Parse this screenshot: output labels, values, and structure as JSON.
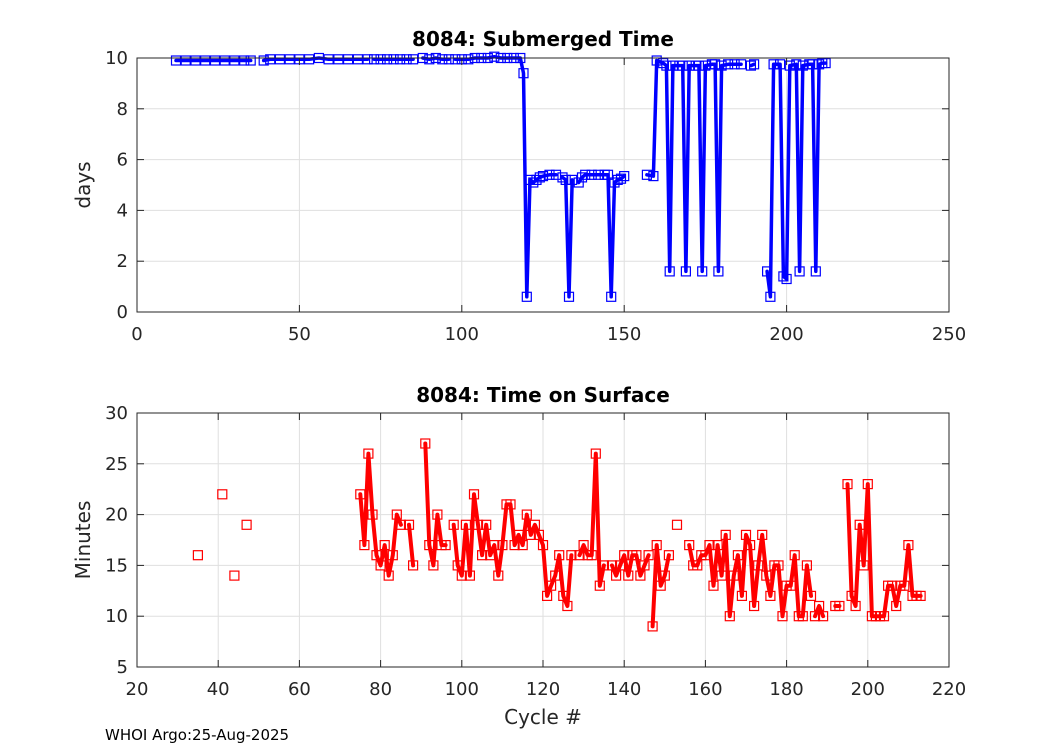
{
  "chart_data": [
    {
      "type": "line",
      "title": "8084: Submerged Time",
      "xlabel": "",
      "ylabel": "days",
      "xlim": [
        0,
        250
      ],
      "ylim": [
        0,
        10
      ],
      "xticks": [
        0,
        50,
        100,
        150,
        200,
        250
      ],
      "yticks": [
        0,
        2,
        4,
        6,
        8,
        10
      ],
      "grid": true,
      "series": [
        {
          "name": "Submerged Time",
          "color": "#0000ff",
          "marker": "square",
          "segments": [
            [
              [
                12,
                9.9
              ],
              [
                15,
                9.9
              ],
              [
                18,
                9.9
              ],
              [
                21,
                9.9
              ],
              [
                24,
                9.9
              ],
              [
                27,
                9.9
              ],
              [
                30,
                9.9
              ],
              [
                33,
                9.9
              ],
              [
                35,
                9.9
              ]
            ],
            [
              [
                39,
                9.9
              ],
              [
                41,
                9.95
              ],
              [
                44,
                9.95
              ],
              [
                47,
                9.95
              ],
              [
                50,
                9.95
              ],
              [
                53,
                9.95
              ],
              [
                56,
                10.0
              ],
              [
                59,
                9.95
              ],
              [
                62,
                9.95
              ],
              [
                65,
                9.95
              ],
              [
                68,
                9.95
              ],
              [
                71,
                9.95
              ]
            ],
            [
              [
                73,
                9.95
              ],
              [
                75,
                9.95
              ],
              [
                77,
                9.95
              ],
              [
                79,
                9.95
              ],
              [
                81,
                9.95
              ],
              [
                83,
                9.95
              ],
              [
                85,
                9.95
              ]
            ],
            [
              [
                88,
                10.0
              ],
              [
                90,
                9.95
              ],
              [
                92,
                10.0
              ],
              [
                94,
                9.95
              ],
              [
                96,
                9.95
              ]
            ],
            [
              [
                98,
                9.95
              ],
              [
                100,
                9.95
              ],
              [
                102,
                9.95
              ],
              [
                104,
                10.0
              ],
              [
                106,
                10.0
              ],
              [
                108,
                10.0
              ],
              [
                110,
                10.05
              ],
              [
                112,
                10.0
              ],
              [
                114,
                10.0
              ],
              [
                116,
                10.0
              ],
              [
                118,
                10.0
              ],
              [
                119,
                9.4
              ],
              [
                120,
                0.6
              ],
              [
                121,
                5.2
              ],
              [
                122,
                5.1
              ],
              [
                123,
                5.2
              ],
              [
                124,
                5.3
              ],
              [
                125,
                5.35
              ],
              [
                127,
                5.4
              ],
              [
                129,
                5.4
              ]
            ],
            [
              [
                131,
                5.3
              ],
              [
                132,
                5.2
              ],
              [
                133,
                0.6
              ],
              [
                134,
                5.2
              ]
            ],
            [
              [
                136,
                5.1
              ],
              [
                137,
                5.3
              ],
              [
                138,
                5.4
              ],
              [
                140,
                5.4
              ],
              [
                142,
                5.4
              ],
              [
                144,
                5.4
              ],
              [
                145,
                5.4
              ],
              [
                146,
                0.6
              ],
              [
                147,
                5.1
              ],
              [
                148,
                5.2
              ],
              [
                149,
                5.25
              ],
              [
                150,
                5.35
              ]
            ],
            [
              [
                157,
                5.4
              ],
              [
                159,
                5.35
              ],
              [
                160,
                9.9
              ],
              [
                162,
                9.8
              ],
              [
                163,
                9.7
              ],
              [
                164,
                1.6
              ],
              [
                165,
                9.7
              ],
              [
                167,
                9.7
              ],
              [
                168,
                9.7
              ],
              [
                169,
                1.6
              ],
              [
                170,
                9.7
              ],
              [
                172,
                9.7
              ],
              [
                173,
                9.7
              ],
              [
                174,
                1.6
              ],
              [
                175,
                9.7
              ],
              [
                177,
                9.75
              ],
              [
                178,
                9.75
              ],
              [
                179,
                1.6
              ],
              [
                180,
                9.7
              ],
              [
                182,
                9.75
              ],
              [
                184,
                9.75
              ],
              [
                186,
                9.75
              ]
            ],
            [
              [
                189,
                9.7
              ],
              [
                190,
                9.75
              ]
            ],
            [
              [
                194,
                1.6
              ],
              [
                195,
                0.6
              ],
              [
                196,
                9.75
              ],
              [
                198,
                9.75
              ],
              [
                199,
                1.4
              ],
              [
                200,
                1.3
              ],
              [
                201,
                9.7
              ],
              [
                203,
                9.75
              ],
              [
                204,
                1.6
              ],
              [
                205,
                9.7
              ],
              [
                207,
                9.75
              ],
              [
                208,
                9.75
              ],
              [
                209,
                1.6
              ],
              [
                210,
                9.75
              ],
              [
                211,
                9.8
              ],
              [
                212,
                9.8
              ]
            ]
          ]
        }
      ]
    },
    {
      "type": "line",
      "title": "8084: Time on Surface",
      "xlabel": "Cycle #",
      "ylabel": "Minutes",
      "xlim": [
        20,
        220
      ],
      "ylim": [
        5,
        30
      ],
      "xticks": [
        20,
        40,
        60,
        80,
        100,
        120,
        140,
        160,
        180,
        200,
        220
      ],
      "yticks": [
        5,
        10,
        15,
        20,
        25,
        30
      ],
      "grid": true,
      "series": [
        {
          "name": "Time on Surface",
          "color": "#ff0000",
          "marker": "square",
          "segments": [
            [
              [
                35,
                16
              ]
            ],
            [
              [
                41,
                22
              ]
            ],
            [
              [
                44,
                14
              ]
            ],
            [
              [
                47,
                19
              ]
            ],
            [
              [
                75,
                22
              ],
              [
                76,
                17
              ],
              [
                77,
                26
              ],
              [
                78,
                20
              ],
              [
                79,
                16
              ],
              [
                80,
                15
              ],
              [
                81,
                17
              ],
              [
                82,
                14
              ],
              [
                83,
                16
              ],
              [
                84,
                20
              ],
              [
                85,
                19
              ]
            ],
            [
              [
                87,
                19
              ],
              [
                88,
                15
              ]
            ],
            [
              [
                91,
                27
              ],
              [
                92,
                17
              ],
              [
                93,
                15
              ],
              [
                94,
                20
              ],
              [
                95,
                17
              ],
              [
                96,
                17
              ]
            ],
            [
              [
                98,
                19
              ],
              [
                99,
                15
              ],
              [
                100,
                14
              ],
              [
                101,
                19
              ],
              [
                102,
                14
              ],
              [
                103,
                22
              ],
              [
                104,
                19
              ],
              [
                105,
                16
              ],
              [
                106,
                19
              ],
              [
                107,
                16
              ],
              [
                108,
                17
              ],
              [
                109,
                14
              ],
              [
                110,
                17
              ],
              [
                111,
                21
              ],
              [
                112,
                21
              ],
              [
                113,
                17
              ],
              [
                114,
                18
              ],
              [
                115,
                17
              ],
              [
                116,
                20
              ],
              [
                117,
                18
              ],
              [
                118,
                19
              ],
              [
                119,
                18
              ],
              [
                120,
                17
              ],
              [
                121,
                12
              ],
              [
                122,
                13
              ],
              [
                123,
                14
              ],
              [
                124,
                16
              ],
              [
                125,
                12
              ],
              [
                126,
                11
              ],
              [
                127,
                16
              ]
            ],
            [
              [
                129,
                16
              ],
              [
                130,
                17
              ],
              [
                131,
                16
              ],
              [
                132,
                16
              ],
              [
                133,
                26
              ],
              [
                134,
                13
              ],
              [
                135,
                15
              ]
            ],
            [
              [
                137,
                15
              ],
              [
                138,
                14
              ],
              [
                139,
                15
              ],
              [
                140,
                16
              ],
              [
                141,
                14
              ],
              [
                142,
                16
              ],
              [
                143,
                16
              ],
              [
                144,
                14
              ],
              [
                145,
                15
              ],
              [
                146,
                16
              ]
            ],
            [
              [
                147,
                9
              ],
              [
                148,
                17
              ],
              [
                149,
                13
              ],
              [
                150,
                14
              ],
              [
                151,
                16
              ]
            ],
            [
              [
                153,
                19
              ]
            ],
            [
              [
                156,
                17
              ],
              [
                157,
                15
              ],
              [
                158,
                15
              ],
              [
                159,
                16
              ],
              [
                160,
                16
              ],
              [
                161,
                17
              ],
              [
                162,
                13
              ],
              [
                163,
                17
              ],
              [
                164,
                14
              ],
              [
                165,
                18
              ],
              [
                166,
                10
              ],
              [
                167,
                14
              ],
              [
                168,
                16
              ],
              [
                169,
                12
              ],
              [
                170,
                18
              ],
              [
                171,
                17
              ],
              [
                172,
                11
              ],
              [
                173,
                15
              ],
              [
                174,
                18
              ],
              [
                175,
                14
              ],
              [
                176,
                12
              ],
              [
                177,
                15
              ],
              [
                178,
                15
              ],
              [
                179,
                10
              ],
              [
                180,
                13
              ],
              [
                181,
                13
              ],
              [
                182,
                16
              ],
              [
                183,
                10
              ],
              [
                184,
                10
              ],
              [
                185,
                15
              ],
              [
                186,
                12
              ]
            ],
            [
              [
                187,
                10
              ],
              [
                188,
                11
              ],
              [
                189,
                10
              ]
            ],
            [
              [
                192,
                11
              ],
              [
                193,
                11
              ]
            ],
            [
              [
                195,
                23
              ],
              [
                196,
                12
              ],
              [
                197,
                11
              ],
              [
                198,
                19
              ],
              [
                199,
                15
              ],
              [
                200,
                23
              ],
              [
                201,
                10
              ],
              [
                202,
                10
              ],
              [
                203,
                10
              ],
              [
                204,
                10
              ],
              [
                205,
                13
              ],
              [
                206,
                13
              ],
              [
                207,
                11
              ],
              [
                208,
                13
              ],
              [
                209,
                13
              ],
              [
                210,
                17
              ],
              [
                211,
                12
              ],
              [
                212,
                12
              ],
              [
                213,
                12
              ]
            ]
          ]
        }
      ]
    }
  ],
  "footer": "WHOI Argo:25-Aug-2025"
}
